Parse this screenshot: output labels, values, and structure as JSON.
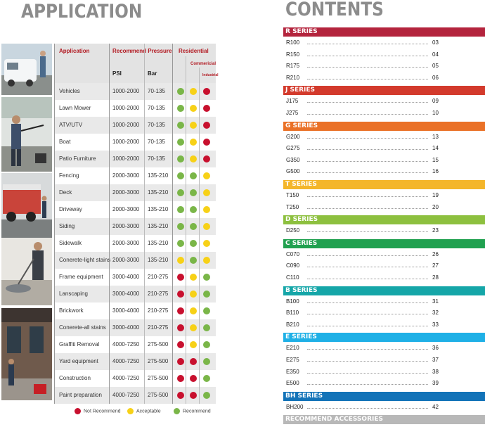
{
  "application": {
    "title": "APPLICATION",
    "headers": {
      "application": "Application",
      "recommend_pressure": "Recommend Pressure",
      "psi": "PSI",
      "bar": "Bar",
      "residential": "Residential",
      "commercial": "Commericial",
      "industrial": "Industrial"
    },
    "rows": [
      {
        "name": "Vehicles",
        "psi": "1000-2000",
        "bar": "70-135",
        "res": "green",
        "com": "yellow",
        "ind": "red"
      },
      {
        "name": "Lawn Mower",
        "psi": "1000-2000",
        "bar": "70-135",
        "res": "green",
        "com": "yellow",
        "ind": "red"
      },
      {
        "name": "ATV/UTV",
        "psi": "1000-2000",
        "bar": "70-135",
        "res": "green",
        "com": "yellow",
        "ind": "red"
      },
      {
        "name": "Boat",
        "psi": "1000-2000",
        "bar": "70-135",
        "res": "green",
        "com": "yellow",
        "ind": "red"
      },
      {
        "name": "Patio Furniture",
        "psi": "1000-2000",
        "bar": "70-135",
        "res": "green",
        "com": "yellow",
        "ind": "red"
      },
      {
        "name": "Fencing",
        "psi": "2000-3000",
        "bar": "135-210",
        "res": "green",
        "com": "green",
        "ind": "yellow"
      },
      {
        "name": "Deck",
        "psi": "2000-3000",
        "bar": "135-210",
        "res": "green",
        "com": "green",
        "ind": "yellow"
      },
      {
        "name": "Driveway",
        "psi": "2000-3000",
        "bar": "135-210",
        "res": "green",
        "com": "green",
        "ind": "yellow"
      },
      {
        "name": "Siding",
        "psi": "2000-3000",
        "bar": "135-210",
        "res": "green",
        "com": "green",
        "ind": "yellow"
      },
      {
        "name": "Sidewalk",
        "psi": "2000-3000",
        "bar": "135-210",
        "res": "green",
        "com": "green",
        "ind": "yellow"
      },
      {
        "name": "Conerete-light stains",
        "psi": "2000-3000",
        "bar": "135-210",
        "res": "yellow",
        "com": "green",
        "ind": "yellow"
      },
      {
        "name": "Frame equipment",
        "psi": "3000-4000",
        "bar": "210-275",
        "res": "red",
        "com": "yellow",
        "ind": "green"
      },
      {
        "name": "Lanscaping",
        "psi": "3000-4000",
        "bar": "210-275",
        "res": "red",
        "com": "yellow",
        "ind": "green"
      },
      {
        "name": "Brickwork",
        "psi": "3000-4000",
        "bar": "210-275",
        "res": "red",
        "com": "yellow",
        "ind": "green"
      },
      {
        "name": "Conerete-all stains",
        "psi": "3000-4000",
        "bar": "210-275",
        "res": "red",
        "com": "yellow",
        "ind": "green"
      },
      {
        "name": "Graffiti Removal",
        "psi": "4000-7250",
        "bar": "275-500",
        "res": "red",
        "com": "yellow",
        "ind": "green"
      },
      {
        "name": "Yard equipment",
        "psi": "4000-7250",
        "bar": "275-500",
        "res": "red",
        "com": "red",
        "ind": "green"
      },
      {
        "name": "Construction",
        "psi": "4000-7250",
        "bar": "275-500",
        "res": "red",
        "com": "red",
        "ind": "green"
      },
      {
        "name": "Paint preparation",
        "psi": "4000-7250",
        "bar": "275-500",
        "res": "red",
        "com": "red",
        "ind": "green"
      }
    ],
    "legend": [
      {
        "label": "Not Recommend",
        "color": "red"
      },
      {
        "label": "Acceptable",
        "color": "yellow"
      },
      {
        "label": "Recommend",
        "color": "green"
      }
    ],
    "dot_colors": {
      "red": "#c8102e",
      "yellow": "#f7d117",
      "green": "#7ab648"
    }
  },
  "contents": {
    "title": "CONTENTS",
    "series": [
      {
        "name": "R SERIES",
        "color": "#b4243d",
        "items": [
          [
            "R100",
            "03"
          ],
          [
            "R150",
            "04"
          ],
          [
            "R175",
            "05"
          ],
          [
            "R210",
            "06"
          ]
        ]
      },
      {
        "name": "J SERIES",
        "color": "#d33a2c",
        "items": [
          [
            "J175",
            "09"
          ],
          [
            "J275",
            "10"
          ]
        ]
      },
      {
        "name": "G SERIES",
        "color": "#ea7127",
        "items": [
          [
            "G200",
            "13"
          ],
          [
            "G275",
            "14"
          ],
          [
            "G350",
            "15"
          ],
          [
            "G500",
            "16"
          ]
        ]
      },
      {
        "name": "T SERIES",
        "color": "#f4b62a",
        "items": [
          [
            "T150",
            "19"
          ],
          [
            "T250",
            "20"
          ]
        ]
      },
      {
        "name": "D SERIES",
        "color": "#8dc03f",
        "items": [
          [
            "D250",
            "23"
          ]
        ]
      },
      {
        "name": "C SERIES",
        "color": "#21a150",
        "items": [
          [
            "C070",
            "26"
          ],
          [
            "C090",
            "27"
          ],
          [
            "C110",
            "28"
          ]
        ]
      },
      {
        "name": "B SERIES",
        "color": "#15a6a8",
        "items": [
          [
            "B100",
            "31"
          ],
          [
            "B110",
            "32"
          ],
          [
            "B210",
            "33"
          ]
        ]
      },
      {
        "name": "E SERIES",
        "color": "#1fb0e6",
        "items": [
          [
            "E210",
            "36"
          ],
          [
            "E275",
            "37"
          ],
          [
            "E350",
            "38"
          ],
          [
            "E500",
            "39"
          ]
        ]
      },
      {
        "name": "BH SERIES",
        "color": "#1373b8",
        "items": [
          [
            "BH200",
            "42"
          ]
        ]
      },
      {
        "name": "RECOMMEND ACCESSORIES",
        "color": "#b8b8b8",
        "items": []
      }
    ]
  }
}
